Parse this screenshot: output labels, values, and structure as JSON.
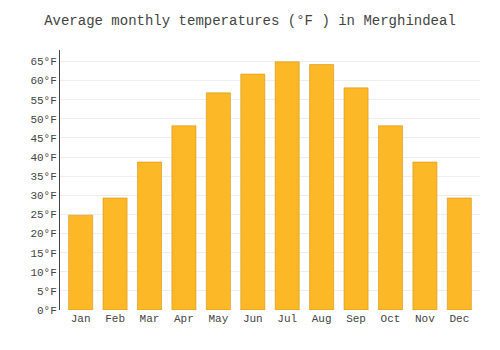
{
  "chart_data": {
    "type": "bar",
    "title": "Average monthly temperatures (°F ) in Merghindeal",
    "categories": [
      "Jan",
      "Feb",
      "Mar",
      "Apr",
      "May",
      "Jun",
      "Jul",
      "Aug",
      "Sep",
      "Oct",
      "Nov",
      "Dec"
    ],
    "values": [
      24.8,
      29.3,
      38.7,
      48.2,
      56.8,
      61.7,
      64.9,
      64.2,
      58.1,
      48.2,
      38.7,
      29.3
    ],
    "color": "#FDB827",
    "ylim": [
      0,
      68
    ],
    "yticks": [
      {
        "value": 0,
        "label": "0°F"
      },
      {
        "value": 5,
        "label": "5°F"
      },
      {
        "value": 10,
        "label": "10°F"
      },
      {
        "value": 15,
        "label": "15°F"
      },
      {
        "value": 20,
        "label": "20°F"
      },
      {
        "value": 25,
        "label": "25°F"
      },
      {
        "value": 30,
        "label": "30°F"
      },
      {
        "value": 35,
        "label": "35°F"
      },
      {
        "value": 40,
        "label": "40°F"
      },
      {
        "value": 45,
        "label": "45°F"
      },
      {
        "value": 50,
        "label": "50°F"
      },
      {
        "value": 55,
        "label": "55°F"
      },
      {
        "value": 60,
        "label": "60°F"
      },
      {
        "value": 65,
        "label": "65°F"
      }
    ],
    "grid": true
  }
}
